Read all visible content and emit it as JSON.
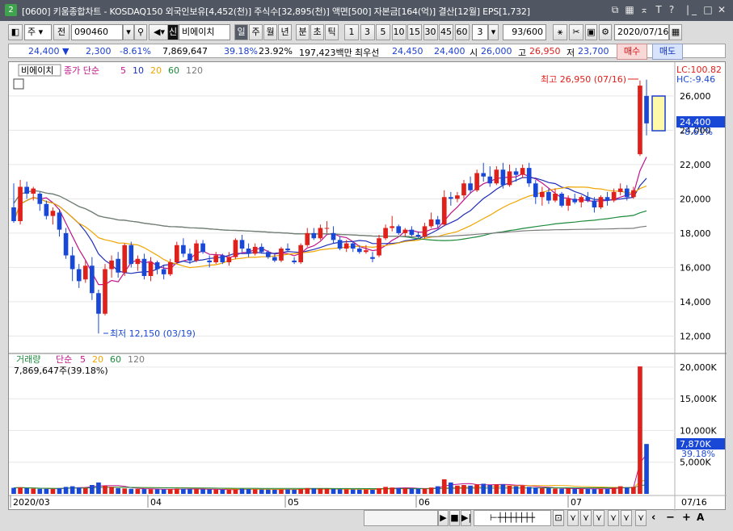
{
  "window": {
    "badge": "2",
    "title": "[0600] 키움종합차트 - KOSDAQ150 외국인보유[4,452(천)] 주식수[32,895(천)] 액면[500] 자본금[164(억)] 결산[12월] EPS[1,732]"
  },
  "toolbar": {
    "period_mode": "주",
    "prev_label": "전",
    "stock_code": "090460",
    "sin_badge": "신",
    "stock_name": "비에이치",
    "unit_il": "일",
    "unit_ju": "주",
    "unit_wol": "월",
    "unit_nyeon": "년",
    "unit_bun": "분",
    "unit_cho": "초",
    "unit_tik": "틱",
    "intervals": [
      "1",
      "3",
      "5",
      "10",
      "15",
      "30",
      "45",
      "60"
    ],
    "interval_value": "3",
    "count": "93/600",
    "date": "2020/07/16"
  },
  "quote": {
    "price": "24,400",
    "change": "2,300",
    "change_pct": "-8.61%",
    "volume": "7,869,647",
    "volume_ratio": "39.18%",
    "turnover": "23.92%",
    "trade_value": "197,423백만",
    "best_ask_label": "최우선",
    "best_ask": "24,450",
    "best_bid": "24,400",
    "open_label": "시",
    "open": "26,000",
    "high_label": "고",
    "high": "26,950",
    "low_label": "저",
    "low": "23,700",
    "buy_label": "매수",
    "sell_label": "매도"
  },
  "price_panel": {
    "stock_label": "비에이치",
    "ma_legend_prefix": "종가 단순",
    "ma_periods": [
      "5",
      "10",
      "20",
      "60",
      "120"
    ],
    "ma_colors": [
      "#c0148c",
      "#1f2fb8",
      "#f0a500",
      "#1a8a3a",
      "#7a7a7a"
    ],
    "lc_label": "LC:100.82",
    "hc_label": "HC:-9.46",
    "high_annotation": "최고 26,950 (07/16)",
    "low_annotation": "최저 12,150 (03/19)",
    "current_price_tag": "24,400",
    "current_pct_tag": "-8.61%",
    "y_ticks": [
      "26,000",
      "24,000",
      "22,000",
      "20,000",
      "18,000",
      "16,000",
      "14,000",
      "12,000"
    ]
  },
  "volume_panel": {
    "label": "거래량",
    "ma_prefix": "단순",
    "ma_periods": [
      "5",
      "20",
      "60",
      "120"
    ],
    "current": "7,869,647주(39.18%)",
    "tag_value": "7,870K",
    "tag_pct": "39.18%",
    "y_ticks": [
      "20,000K",
      "15,000K",
      "10,000K",
      "5,000K"
    ]
  },
  "x_axis": {
    "labels": [
      "2020/03",
      "04",
      "05",
      "06",
      "07"
    ],
    "right_label": "07/16"
  },
  "colors": {
    "up": "#e0201b",
    "down": "#1a48d6",
    "ma5": "#c0148c",
    "ma10": "#1f2fb8",
    "ma20": "#f0a500",
    "ma60": "#1a8a3a",
    "ma120": "#7a7a7a"
  },
  "chart_data": {
    "type": "candlestick",
    "title": "비에이치",
    "date_range": [
      "2020/03",
      "2020/07/16"
    ],
    "yrange": [
      11500,
      27500
    ],
    "candles": [
      [
        19500,
        20900,
        18600,
        18700
      ],
      [
        18700,
        21100,
        18500,
        20700
      ],
      [
        20700,
        21000,
        20000,
        20300
      ],
      [
        20300,
        20700,
        19900,
        20600
      ],
      [
        20300,
        20400,
        19300,
        19700
      ],
      [
        19700,
        19900,
        18800,
        19000
      ],
      [
        19000,
        19500,
        18500,
        19300
      ],
      [
        19200,
        19400,
        17800,
        18200
      ],
      [
        18000,
        18300,
        16500,
        16700
      ],
      [
        16700,
        17200,
        15200,
        15900
      ],
      [
        15900,
        16200,
        14800,
        15200
      ],
      [
        15300,
        16400,
        15100,
        16100
      ],
      [
        16100,
        16600,
        14100,
        14500
      ],
      [
        14500,
        14700,
        12150,
        13300
      ],
      [
        13300,
        16200,
        13200,
        15900
      ],
      [
        15900,
        16700,
        15400,
        16400
      ],
      [
        16500,
        16900,
        15400,
        15700
      ],
      [
        15700,
        17400,
        15500,
        17300
      ],
      [
        17300,
        17500,
        16000,
        16200
      ],
      [
        16200,
        16700,
        15800,
        16500
      ],
      [
        16500,
        16800,
        15300,
        15500
      ],
      [
        15500,
        16600,
        15200,
        16300
      ],
      [
        16300,
        16400,
        15600,
        15900
      ],
      [
        15900,
        16100,
        15300,
        15600
      ],
      [
        15600,
        16500,
        15500,
        16300
      ],
      [
        16300,
        17500,
        16200,
        17300
      ],
      [
        17300,
        17700,
        16600,
        16800
      ],
      [
        16800,
        17100,
        16200,
        16400
      ],
      [
        16400,
        17600,
        16300,
        17400
      ],
      [
        17400,
        17600,
        16800,
        16900
      ],
      [
        16400,
        16700,
        16000,
        16300
      ],
      [
        16300,
        16900,
        16200,
        16700
      ],
      [
        16700,
        16800,
        16200,
        16300
      ],
      [
        16300,
        16900,
        16100,
        16600
      ],
      [
        16600,
        17700,
        16500,
        17600
      ],
      [
        17600,
        17900,
        16900,
        17100
      ],
      [
        17100,
        17400,
        16600,
        16800
      ],
      [
        16800,
        17400,
        16700,
        17200
      ],
      [
        17200,
        17400,
        16800,
        16900
      ],
      [
        16900,
        17000,
        16500,
        16600
      ],
      [
        16600,
        16800,
        16300,
        16400
      ],
      [
        16400,
        17200,
        16300,
        17100
      ],
      [
        17100,
        17400,
        16900,
        17000
      ],
      [
        16400,
        16600,
        16200,
        16300
      ],
      [
        16300,
        17400,
        16200,
        17300
      ],
      [
        17300,
        18300,
        17200,
        18000
      ],
      [
        18000,
        18300,
        17600,
        17700
      ],
      [
        17700,
        18500,
        17600,
        18300
      ],
      [
        18300,
        18700,
        18000,
        18300
      ],
      [
        18000,
        18400,
        17400,
        17600
      ],
      [
        17600,
        17800,
        17000,
        17100
      ],
      [
        17100,
        17600,
        16900,
        17400
      ],
      [
        17400,
        17500,
        16900,
        17100
      ],
      [
        17100,
        17300,
        16800,
        16900
      ],
      [
        16900,
        17300,
        16800,
        17000
      ],
      [
        16600,
        16900,
        16300,
        16500
      ],
      [
        16700,
        17900,
        16600,
        17700
      ],
      [
        17700,
        18500,
        17600,
        18300
      ],
      [
        18300,
        19000,
        18100,
        18400
      ],
      [
        18400,
        18500,
        17900,
        18000
      ],
      [
        18000,
        18300,
        17800,
        18200
      ],
      [
        18200,
        18400,
        17800,
        17900
      ],
      [
        17900,
        18100,
        17700,
        17800
      ],
      [
        17800,
        18600,
        17700,
        18400
      ],
      [
        18400,
        19200,
        18300,
        18800
      ],
      [
        18800,
        19000,
        18300,
        18500
      ],
      [
        18500,
        20500,
        18400,
        20100
      ],
      [
        20100,
        20400,
        19600,
        20000
      ],
      [
        20000,
        20400,
        19800,
        20200
      ],
      [
        20200,
        21100,
        20000,
        20900
      ],
      [
        20900,
        21300,
        20300,
        20500
      ],
      [
        20500,
        21700,
        20400,
        21500
      ],
      [
        21500,
        22100,
        21000,
        21300
      ],
      [
        21300,
        21900,
        20700,
        20900
      ],
      [
        20900,
        21900,
        20800,
        21700
      ],
      [
        21700,
        22100,
        20600,
        20800
      ],
      [
        20800,
        22000,
        20700,
        21600
      ],
      [
        21600,
        21800,
        21000,
        21400
      ],
      [
        21400,
        22000,
        21200,
        21800
      ],
      [
        21800,
        22100,
        20700,
        20900
      ],
      [
        20900,
        21100,
        19700,
        20100
      ],
      [
        20100,
        20700,
        19600,
        20400
      ],
      [
        20400,
        20600,
        19700,
        19900
      ],
      [
        19900,
        20600,
        19800,
        20300
      ],
      [
        20300,
        20400,
        19500,
        19600
      ],
      [
        19600,
        20200,
        19300,
        20000
      ],
      [
        20000,
        20300,
        19700,
        19800
      ],
      [
        19800,
        20200,
        19500,
        20100
      ],
      [
        20100,
        20400,
        19800,
        19900
      ],
      [
        19900,
        20100,
        19200,
        19500
      ],
      [
        19500,
        20200,
        19400,
        20100
      ],
      [
        20100,
        20400,
        19600,
        19900
      ],
      [
        19900,
        20600,
        19800,
        20400
      ],
      [
        20400,
        20900,
        20200,
        20600
      ],
      [
        20600,
        20800,
        19900,
        20100
      ],
      [
        20100,
        20700,
        20000,
        20500
      ],
      [
        22600,
        26900,
        22500,
        26600
      ],
      [
        26000,
        26950,
        23700,
        24400
      ]
    ],
    "volume_k": [
      950,
      1000,
      900,
      820,
      800,
      780,
      760,
      900,
      1100,
      1200,
      1000,
      900,
      1400,
      1800,
      1300,
      1100,
      900,
      850,
      800,
      780,
      760,
      740,
      720,
      700,
      760,
      820,
      780,
      740,
      760,
      720,
      700,
      680,
      660,
      640,
      720,
      800,
      760,
      720,
      700,
      680,
      660,
      700,
      720,
      680,
      760,
      900,
      850,
      820,
      800,
      760,
      740,
      720,
      700,
      680,
      700,
      660,
      900,
      1100,
      1000,
      900,
      860,
      820,
      800,
      840,
      1000,
      1200,
      2300,
      1800,
      1300,
      1400,
      1300,
      1500,
      1600,
      1400,
      1500,
      1500,
      1300,
      1200,
      1300,
      1100,
      1000,
      900,
      900,
      850,
      800,
      850,
      800,
      780,
      800,
      760,
      820,
      800,
      1000,
      1200,
      1000,
      1100,
      20100,
      7870
    ]
  }
}
